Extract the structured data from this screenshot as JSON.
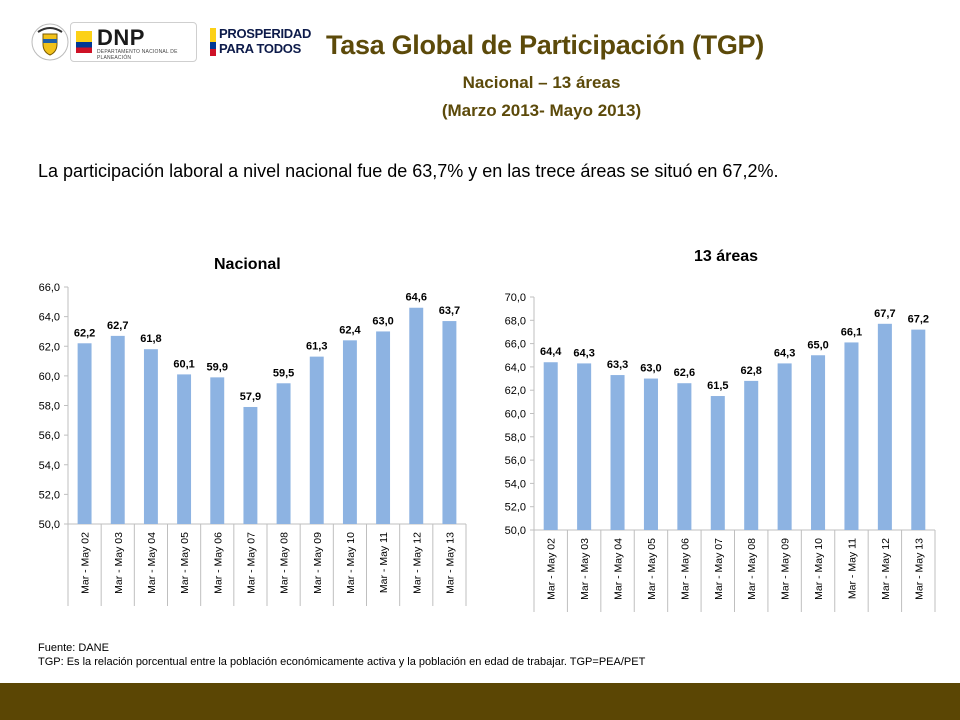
{
  "header": {
    "logos": {
      "shield_icon": "colombia-coat-of-arms-icon",
      "dnp_text": "DNP",
      "dnp_subtext": "DEPARTAMENTO NACIONAL DE PLANEACIÓN",
      "prosperidad_line1": "PROSPERIDAD",
      "prosperidad_line2": "PARA TODOS"
    },
    "title": "Tasa Global de Participación (TGP)",
    "subtitle1": "Nacional – 13 áreas",
    "subtitle2": "(Marzo 2013- Mayo 2013)"
  },
  "intro_text": "La participación laboral a nivel nacional fue de 63,7% y en las trece áreas se situó en 67,2%.",
  "chart_data": [
    {
      "type": "bar",
      "title": "Nacional",
      "categories": [
        "Mar - May 02",
        "Mar - May 03",
        "Mar - May 04",
        "Mar - May 05",
        "Mar - May 06",
        "Mar - May 07",
        "Mar - May 08",
        "Mar - May 09",
        "Mar - May 10",
        "Mar - May 11",
        "Mar - May 12",
        "Mar - May 13"
      ],
      "values": [
        62.2,
        62.7,
        61.8,
        60.1,
        59.9,
        57.9,
        59.5,
        61.3,
        62.4,
        63.0,
        64.6,
        63.7
      ],
      "value_labels": [
        "62,2",
        "62,7",
        "61,8",
        "60,1",
        "59,9",
        "57,9",
        "59,5",
        "61,3",
        "62,4",
        "63,0",
        "64,6",
        "63,7"
      ],
      "ylim": [
        50,
        66
      ],
      "yticks": [
        "50,0",
        "52,0",
        "54,0",
        "56,0",
        "58,0",
        "60,0",
        "62,0",
        "64,0",
        "66,0"
      ],
      "xlabel": "",
      "ylabel": "",
      "bar_color": "#8db3e2"
    },
    {
      "type": "bar",
      "title": "13 áreas",
      "categories": [
        "Mar - May 02",
        "Mar - May 03",
        "Mar - May 04",
        "Mar - May 05",
        "Mar - May 06",
        "Mar - May 07",
        "Mar - May 08",
        "Mar - May 09",
        "Mar - May 10",
        "Mar - May 11",
        "Mar - May 12",
        "Mar - May 13"
      ],
      "values": [
        64.4,
        64.3,
        63.3,
        63.0,
        62.6,
        61.5,
        62.8,
        64.3,
        65.0,
        66.1,
        67.7,
        67.2
      ],
      "value_labels": [
        "64,4",
        "64,3",
        "63,3",
        "63,0",
        "62,6",
        "61,5",
        "62,8",
        "64,3",
        "65,0",
        "66,1",
        "67,7",
        "67,2"
      ],
      "ylim": [
        50,
        70
      ],
      "yticks": [
        "50,0",
        "52,0",
        "54,0",
        "56,0",
        "58,0",
        "60,0",
        "62,0",
        "64,0",
        "66,0",
        "68,0",
        "70,0"
      ],
      "xlabel": "",
      "ylabel": "",
      "bar_color": "#8db3e2"
    }
  ],
  "footer": {
    "source": "Fuente: DANE",
    "note": "TGP: Es la relación porcentual entre la población económicamente activa y la población en edad de trabajar. TGP=PEA/PET"
  },
  "colors": {
    "title": "#5c4a0a",
    "bottom_bar": "#5b4604"
  }
}
